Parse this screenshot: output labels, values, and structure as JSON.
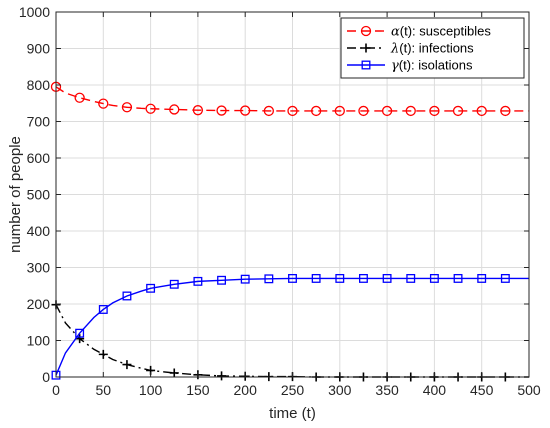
{
  "chart_data": {
    "type": "line",
    "title": "",
    "xlabel": "time (t)",
    "ylabel": "number of people",
    "xlim": [
      0,
      500
    ],
    "ylim": [
      0,
      1000
    ],
    "xticks": [
      0,
      50,
      100,
      150,
      200,
      250,
      300,
      350,
      400,
      450,
      500
    ],
    "yticks": [
      0,
      100,
      200,
      300,
      400,
      500,
      600,
      700,
      800,
      900,
      1000
    ],
    "grid": true,
    "legend_position": "top-right",
    "marker_x": [
      0,
      25,
      50,
      75,
      100,
      125,
      150,
      175,
      200,
      225,
      250,
      275,
      300,
      325,
      350,
      375,
      400,
      425,
      450,
      475
    ],
    "series": [
      {
        "symbol": "α",
        "name": "(t): susceptibles",
        "color": "#ff0000",
        "line_style": "dashed",
        "marker": "circle",
        "x": [
          0,
          10,
          25,
          40,
          50,
          60,
          75,
          90,
          100,
          125,
          150,
          175,
          200,
          225,
          250,
          275,
          300,
          325,
          350,
          375,
          400,
          425,
          450,
          475,
          500
        ],
        "values": [
          795,
          778,
          765,
          755,
          749,
          744,
          739,
          736,
          735,
          733,
          731,
          730,
          730,
          729,
          729,
          729,
          729,
          729,
          729,
          729,
          729,
          729,
          729,
          729,
          729
        ]
      },
      {
        "symbol": "λ",
        "name": "(t): infections",
        "color": "#000000",
        "line_style": "dashdot",
        "marker": "plus",
        "x": [
          0,
          10,
          25,
          40,
          50,
          60,
          75,
          90,
          100,
          125,
          150,
          175,
          200,
          225,
          250,
          275,
          300,
          325,
          350,
          375,
          400,
          425,
          450,
          475,
          500
        ],
        "values": [
          198,
          148,
          105,
          76,
          62,
          48,
          34,
          24,
          18,
          11,
          6,
          3,
          2,
          1,
          1,
          0,
          0,
          0,
          0,
          0,
          0,
          0,
          0,
          0,
          0
        ]
      },
      {
        "symbol": "γ",
        "name": "(t): isolations",
        "color": "#0000ff",
        "line_style": "solid",
        "marker": "square",
        "x": [
          0,
          10,
          25,
          40,
          50,
          60,
          75,
          90,
          100,
          125,
          150,
          175,
          200,
          225,
          250,
          275,
          300,
          325,
          350,
          375,
          400,
          425,
          450,
          475,
          500
        ],
        "values": [
          5,
          66,
          120,
          163,
          185,
          203,
          222,
          235,
          243,
          254,
          262,
          265,
          268,
          269,
          270,
          270,
          270,
          270,
          270,
          270,
          270,
          270,
          270,
          270,
          270
        ]
      }
    ]
  }
}
